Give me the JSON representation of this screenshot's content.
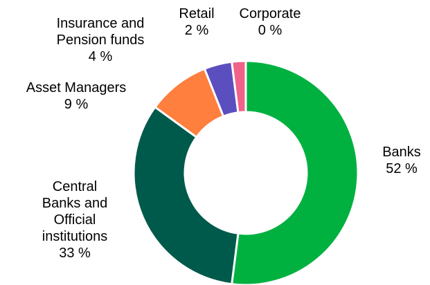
{
  "chart_data": {
    "type": "donut",
    "categories": [
      "Banks",
      "Central Banks and Official institutions",
      "Asset Managers",
      "Insurance and Pension funds",
      "Retail",
      "Corporate"
    ],
    "values": [
      52,
      33,
      9,
      4,
      2,
      0
    ],
    "value_labels": [
      "52 %",
      "33 %",
      "9 %",
      "4 %",
      "2 %",
      "0 %"
    ],
    "colors": [
      "#00b140",
      "#005a4b",
      "#ff7f3f",
      "#5b4fbf",
      "#f0628a",
      "#ffc000"
    ]
  }
}
